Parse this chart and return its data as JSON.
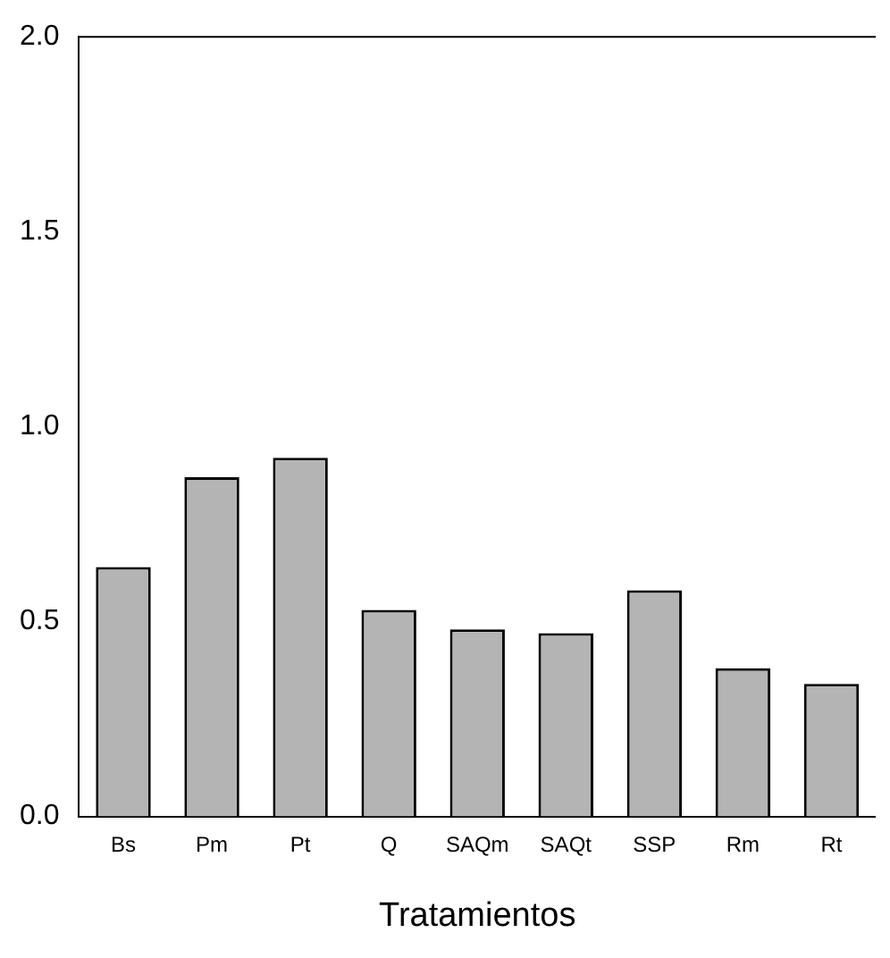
{
  "chart_data": {
    "type": "bar",
    "xlabel": "Tratamientos",
    "categories": [
      "Bs",
      "Pm",
      "Pt",
      "Q",
      "SAQm",
      "SAQt",
      "SSP",
      "Rm",
      "Rt"
    ],
    "values": [
      0.64,
      0.87,
      0.92,
      0.53,
      0.48,
      0.47,
      0.58,
      0.38,
      0.34
    ],
    "color": "#b4b4b4",
    "ylim": [
      0,
      2.0
    ],
    "yticks": [
      {
        "value": 0,
        "label": "0.0"
      },
      {
        "value": 0.5,
        "label": "0.5"
      },
      {
        "value": 1.0,
        "label": "1.0"
      },
      {
        "value": 1.5,
        "label": "1.5"
      },
      {
        "value": 2.0,
        "label": "2.0"
      }
    ],
    "grid": false
  }
}
